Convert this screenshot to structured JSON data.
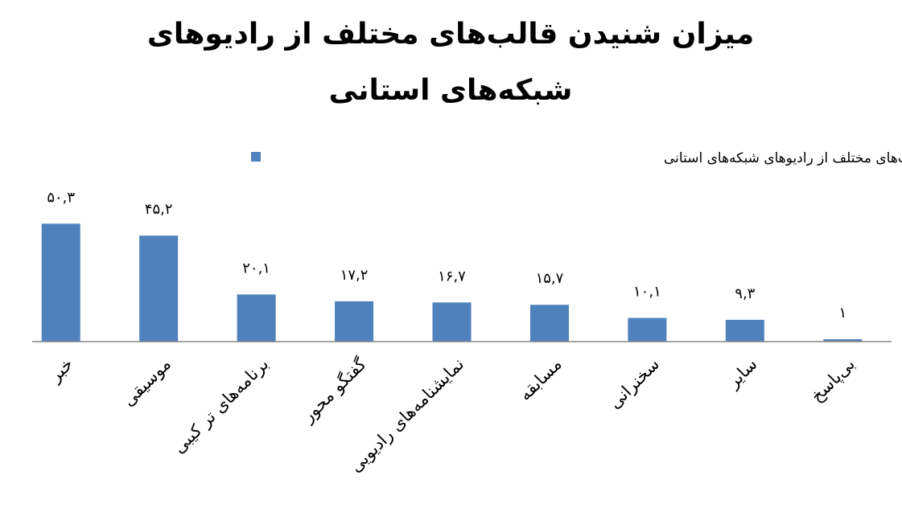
{
  "chart_data": {
    "type": "bar",
    "title": "میزان شنیدن قالب‌های مختلف از رادیوهای شبکه‌های استانی",
    "categories": [
      "خبر",
      "موسیقی",
      "برنامه‌های تر کیبی",
      "گفتگو محور",
      "نمایشنامه‌های رادیویی",
      "مسابقه",
      "سخنرانی",
      "سایر",
      "بی‌پاسخ"
    ],
    "series": [
      {
        "name": "میزان شنیدن قالب‌های مختلف از رادیوهای شبکه‌های استانی",
        "color": "#4f81bd",
        "values": [
          50.3,
          45.2,
          20.1,
          17.2,
          16.7,
          15.7,
          10.1,
          9.3,
          1
        ],
        "value_labels": [
          "۵۰,۳",
          "۴۵,۲",
          "۲۰,۱",
          "۱۷,۲",
          "۱۶,۷",
          "۱۵,۷",
          "۱۰,۱",
          "۹,۳",
          "۱"
        ]
      }
    ],
    "ylim": [
      0,
      60
    ],
    "legend": "top"
  }
}
